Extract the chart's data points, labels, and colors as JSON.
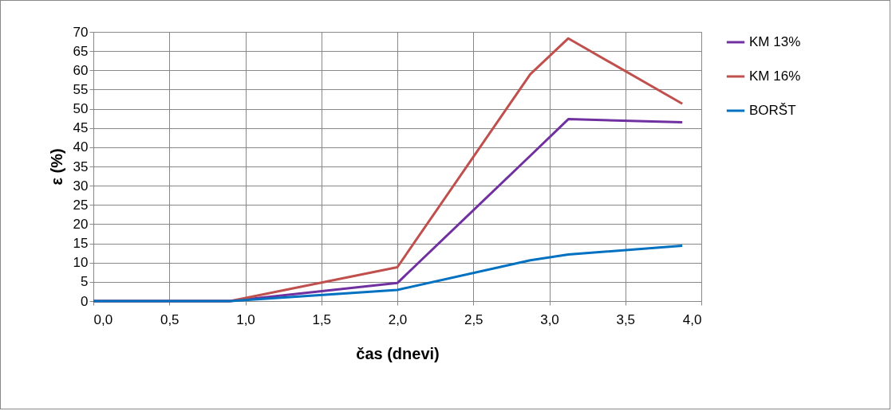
{
  "chart_data": {
    "type": "line",
    "xlabel": "čas (dnevi)",
    "ylabel": "ε (%)",
    "x": [
      0,
      0.9,
      2.0,
      2.875,
      3.125,
      3.875
    ],
    "series": [
      {
        "name": "KM 13%",
        "color": "#7030a0",
        "values": [
          0,
          0,
          4.7,
          37.8,
          47.3,
          46.5
        ]
      },
      {
        "name": "KM 16%",
        "color": "#c0504d",
        "values": [
          0,
          0,
          8.8,
          59,
          68.3,
          51.3
        ]
      },
      {
        "name": "BORŠT",
        "color": "#0070c0",
        "values": [
          0,
          0,
          2.9,
          10.6,
          12.1,
          14.4
        ]
      }
    ],
    "xlim": [
      0,
      4
    ],
    "xticks": [
      {
        "value": 0,
        "label": "0,0"
      },
      {
        "value": 0.5,
        "label": "0,5"
      },
      {
        "value": 1,
        "label": "1,0"
      },
      {
        "value": 1.5,
        "label": "1,5"
      },
      {
        "value": 2,
        "label": "2,0"
      },
      {
        "value": 2.5,
        "label": "2,5"
      },
      {
        "value": 3,
        "label": "3,0"
      },
      {
        "value": 3.5,
        "label": "3,5"
      },
      {
        "value": 4,
        "label": "4,0"
      }
    ],
    "ylim": [
      0,
      70
    ],
    "yticks": [
      0,
      5,
      10,
      15,
      20,
      25,
      30,
      35,
      40,
      45,
      50,
      55,
      60,
      65,
      70
    ],
    "grid": true,
    "legend": "right",
    "marker": "none",
    "line_style": "solid"
  }
}
